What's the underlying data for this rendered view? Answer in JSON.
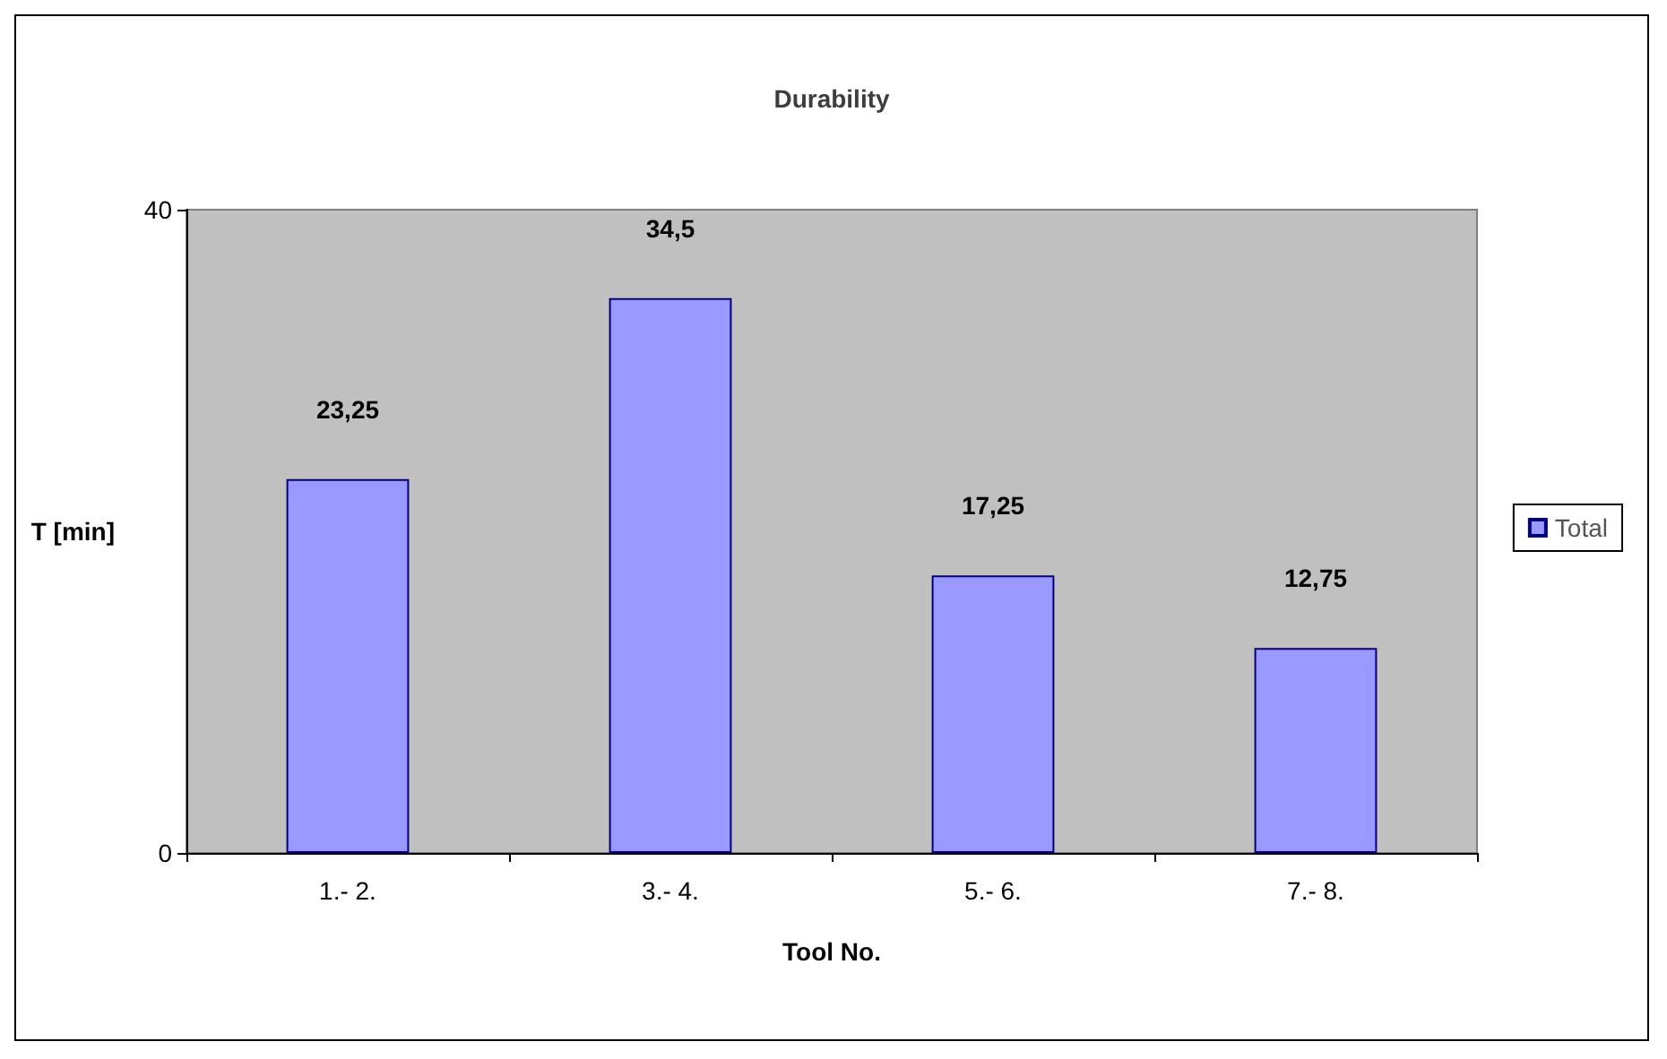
{
  "chart_data": {
    "type": "bar",
    "title": "Durability",
    "xlabel": "Tool No.",
    "ylabel": "T [min]",
    "categories": [
      "1.- 2.",
      "3.- 4.",
      "5.- 6.",
      "7.- 8."
    ],
    "series": [
      {
        "name": "Total",
        "color": "#9999ff",
        "values": [
          23.25,
          34.5,
          17.25,
          12.75
        ],
        "value_labels": [
          "23,25",
          "34,5",
          "17,25",
          "12,75"
        ]
      }
    ],
    "ylim": [
      0,
      40
    ],
    "yticks": [
      0,
      40
    ],
    "grid": false,
    "legend": "right"
  }
}
